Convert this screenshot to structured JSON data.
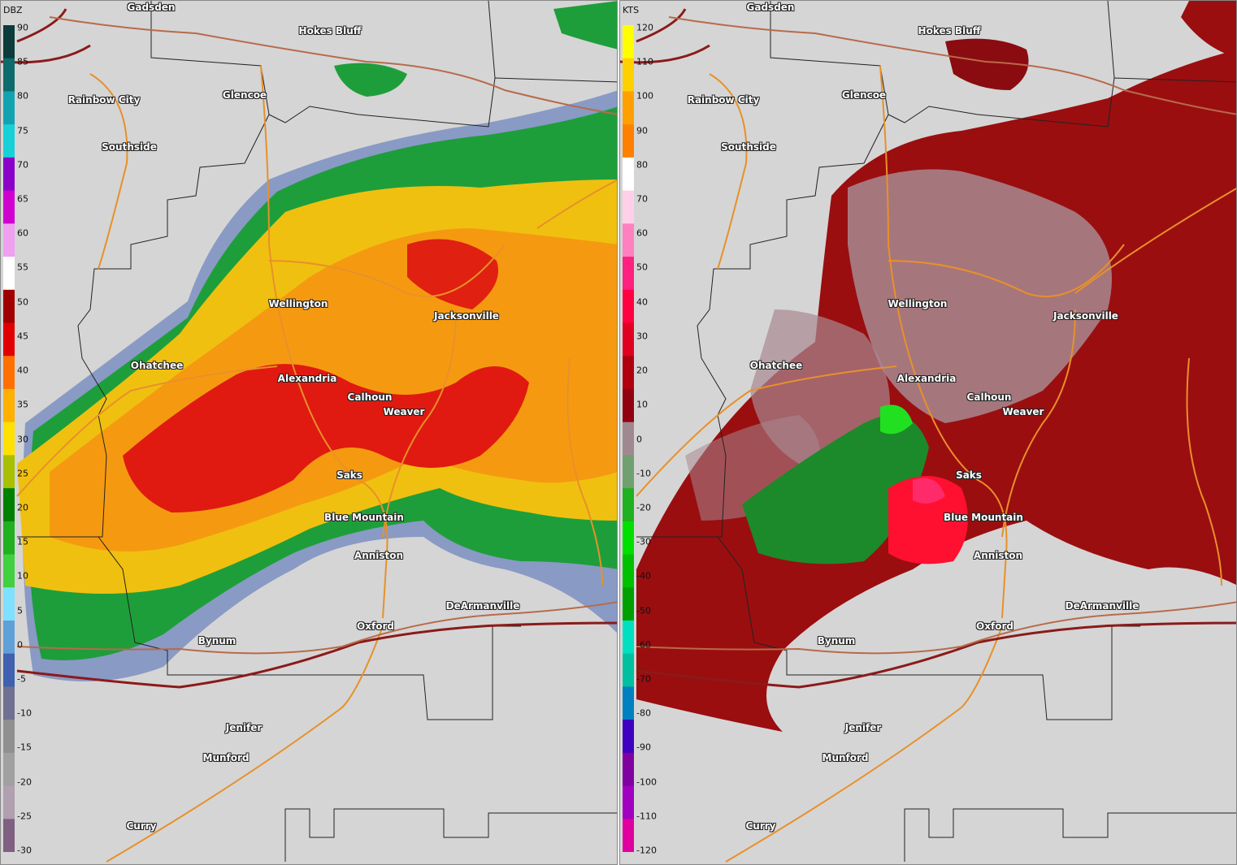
{
  "panels": [
    {
      "id": "reflectivity",
      "unit": "DBZ",
      "ticks": [
        "90",
        "85",
        "80",
        "75",
        "70",
        "65",
        "60",
        "55",
        "50",
        "45",
        "40",
        "35",
        "30",
        "25",
        "20",
        "15",
        "10",
        "5",
        "0",
        "-5",
        "-10",
        "-15",
        "-20",
        "-25",
        "-30"
      ],
      "legend_colors": [
        "#0b3b3b",
        "#0e6b6b",
        "#13a3b0",
        "#18d0d8",
        "#8a00c8",
        "#d000d0",
        "#f0a0f0",
        "#ffffff",
        "#a00000",
        "#e00000",
        "#ff7000",
        "#ffb000",
        "#ffe000",
        "#a8c000",
        "#008000",
        "#20b020",
        "#40d040",
        "#80e0ff",
        "#60a0d8",
        "#4060b0",
        "#707090",
        "#909090",
        "#a0a0a0",
        "#b0a0b0",
        "#806080"
      ]
    },
    {
      "id": "velocity",
      "unit": "KTS",
      "ticks": [
        "120",
        "110",
        "100",
        "90",
        "80",
        "70",
        "60",
        "50",
        "40",
        "30",
        "20",
        "10",
        "0",
        "-10",
        "-20",
        "-30",
        "-40",
        "-50",
        "-60",
        "-70",
        "-80",
        "-90",
        "-100",
        "-110",
        "-120"
      ],
      "legend_colors": [
        "#ffff00",
        "#ffd000",
        "#ffa000",
        "#ff8000",
        "#ffffff",
        "#ffd0e8",
        "#ff80c0",
        "#ff2080",
        "#ff0040",
        "#e00020",
        "#b00010",
        "#900010",
        "#a08890",
        "#70a070",
        "#20b020",
        "#00e000",
        "#00c000",
        "#00a000",
        "#00e0c0",
        "#00c0a0",
        "#0080c0",
        "#4000c0",
        "#8000a0",
        "#a000c0",
        "#e000a0"
      ]
    }
  ],
  "cities": [
    {
      "name": "Gadsden"
    },
    {
      "name": "Hokes Bluff"
    },
    {
      "name": "Rainbow City"
    },
    {
      "name": "Glencoe"
    },
    {
      "name": "Southside"
    },
    {
      "name": "Wellington"
    },
    {
      "name": "Jacksonville"
    },
    {
      "name": "Ohatchee"
    },
    {
      "name": "Alexandria"
    },
    {
      "name": "Calhoun"
    },
    {
      "name": "Weaver"
    },
    {
      "name": "Saks"
    },
    {
      "name": "Blue Mountain"
    },
    {
      "name": "Anniston"
    },
    {
      "name": "DeArmanville"
    },
    {
      "name": "Oxford"
    },
    {
      "name": "Bynum"
    },
    {
      "name": "Jenifer"
    },
    {
      "name": "Munford"
    },
    {
      "name": "Curry"
    }
  ],
  "colors": {
    "background": "#d5d5d5",
    "county_lines": "#222222",
    "highway": "#8b1a1a",
    "roads": "#e8902a"
  }
}
